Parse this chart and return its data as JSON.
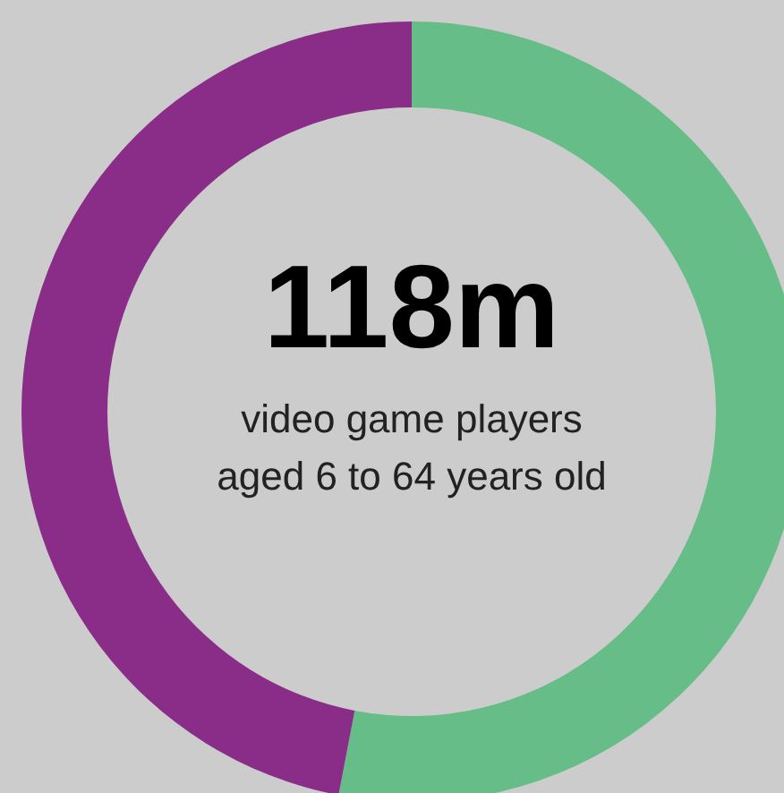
{
  "chart_data": {
    "type": "donut",
    "title": "118m",
    "subtitle": "video game players\naged 6 to 64 years old",
    "categories": [
      null,
      null
    ],
    "values": [
      53,
      47
    ],
    "colors": [
      "#66bd87",
      "#8a2d88"
    ]
  }
}
